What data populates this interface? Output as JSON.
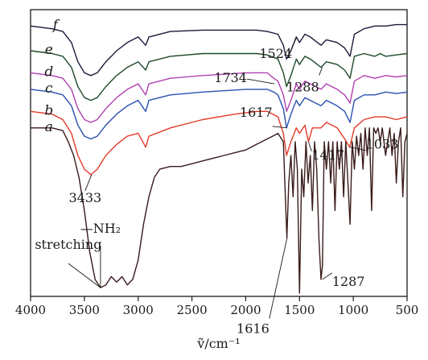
{
  "chart_data": {
    "type": "line",
    "title": "",
    "xlabel": "ṽ/cm⁻¹",
    "ylabel": "",
    "xlim": [
      4000,
      500
    ],
    "x_reversed": true,
    "x_ticks": [
      4000,
      3500,
      3000,
      2500,
      2000,
      1500,
      1000,
      500
    ],
    "x_tick_labels": [
      "4000",
      "3500",
      "3000",
      "2500",
      "2000",
      "1500",
      "1000",
      "500"
    ],
    "ylim": [
      0,
      1
    ],
    "grid": false,
    "legend": "none",
    "series": [
      {
        "name": "f",
        "color": "#1a1a3a",
        "points": [
          [
            4000,
            0.97
          ],
          [
            3800,
            0.96
          ],
          [
            3700,
            0.95
          ],
          [
            3620,
            0.91
          ],
          [
            3560,
            0.84
          ],
          [
            3500,
            0.8
          ],
          [
            3440,
            0.79
          ],
          [
            3380,
            0.8
          ],
          [
            3300,
            0.84
          ],
          [
            3200,
            0.88
          ],
          [
            3100,
            0.91
          ],
          [
            3000,
            0.93
          ],
          [
            2930,
            0.9
          ],
          [
            2900,
            0.93
          ],
          [
            2700,
            0.95
          ],
          [
            2400,
            0.955
          ],
          [
            2000,
            0.955
          ],
          [
            1900,
            0.955
          ],
          [
            1800,
            0.95
          ],
          [
            1700,
            0.94
          ],
          [
            1650,
            0.9
          ],
          [
            1620,
            0.85
          ],
          [
            1580,
            0.88
          ],
          [
            1530,
            0.93
          ],
          [
            1500,
            0.91
          ],
          [
            1450,
            0.94
          ],
          [
            1400,
            0.93
          ],
          [
            1300,
            0.9
          ],
          [
            1250,
            0.92
          ],
          [
            1150,
            0.91
          ],
          [
            1080,
            0.89
          ],
          [
            1030,
            0.86
          ],
          [
            990,
            0.94
          ],
          [
            900,
            0.96
          ],
          [
            800,
            0.97
          ],
          [
            700,
            0.97
          ],
          [
            600,
            0.975
          ],
          [
            500,
            0.975
          ]
        ]
      },
      {
        "name": "e",
        "color": "#1e4a2a",
        "points": [
          [
            4000,
            0.88
          ],
          [
            3800,
            0.87
          ],
          [
            3700,
            0.86
          ],
          [
            3620,
            0.82
          ],
          [
            3560,
            0.75
          ],
          [
            3500,
            0.71
          ],
          [
            3440,
            0.7
          ],
          [
            3380,
            0.71
          ],
          [
            3300,
            0.75
          ],
          [
            3200,
            0.79
          ],
          [
            3100,
            0.82
          ],
          [
            3000,
            0.84
          ],
          [
            2930,
            0.81
          ],
          [
            2900,
            0.84
          ],
          [
            2700,
            0.86
          ],
          [
            2400,
            0.87
          ],
          [
            2000,
            0.87
          ],
          [
            1900,
            0.87
          ],
          [
            1800,
            0.865
          ],
          [
            1700,
            0.85
          ],
          [
            1650,
            0.8
          ],
          [
            1620,
            0.75
          ],
          [
            1580,
            0.79
          ],
          [
            1530,
            0.85
          ],
          [
            1500,
            0.83
          ],
          [
            1450,
            0.86
          ],
          [
            1400,
            0.85
          ],
          [
            1300,
            0.82
          ],
          [
            1250,
            0.84
          ],
          [
            1150,
            0.83
          ],
          [
            1080,
            0.81
          ],
          [
            1030,
            0.78
          ],
          [
            990,
            0.86
          ],
          [
            900,
            0.87
          ],
          [
            800,
            0.86
          ],
          [
            750,
            0.87
          ],
          [
            700,
            0.86
          ],
          [
            600,
            0.865
          ],
          [
            500,
            0.87
          ]
        ]
      },
      {
        "name": "d",
        "color": "#b040b0",
        "points": [
          [
            4000,
            0.8
          ],
          [
            3800,
            0.79
          ],
          [
            3700,
            0.78
          ],
          [
            3620,
            0.74
          ],
          [
            3560,
            0.67
          ],
          [
            3500,
            0.63
          ],
          [
            3440,
            0.62
          ],
          [
            3380,
            0.63
          ],
          [
            3300,
            0.67
          ],
          [
            3200,
            0.71
          ],
          [
            3100,
            0.74
          ],
          [
            3000,
            0.76
          ],
          [
            2930,
            0.72
          ],
          [
            2900,
            0.76
          ],
          [
            2700,
            0.78
          ],
          [
            2400,
            0.79
          ],
          [
            2000,
            0.8
          ],
          [
            1800,
            0.8
          ],
          [
            1740,
            0.78
          ],
          [
            1700,
            0.77
          ],
          [
            1650,
            0.72
          ],
          [
            1620,
            0.66
          ],
          [
            1580,
            0.7
          ],
          [
            1530,
            0.76
          ],
          [
            1500,
            0.74
          ],
          [
            1450,
            0.77
          ],
          [
            1400,
            0.76
          ],
          [
            1300,
            0.74
          ],
          [
            1250,
            0.76
          ],
          [
            1150,
            0.74
          ],
          [
            1080,
            0.72
          ],
          [
            1030,
            0.69
          ],
          [
            990,
            0.77
          ],
          [
            900,
            0.79
          ],
          [
            800,
            0.78
          ],
          [
            700,
            0.79
          ],
          [
            600,
            0.785
          ],
          [
            500,
            0.79
          ]
        ]
      },
      {
        "name": "c",
        "color": "#2a50b0",
        "points": [
          [
            4000,
            0.74
          ],
          [
            3800,
            0.73
          ],
          [
            3700,
            0.72
          ],
          [
            3620,
            0.68
          ],
          [
            3560,
            0.61
          ],
          [
            3500,
            0.57
          ],
          [
            3440,
            0.56
          ],
          [
            3380,
            0.57
          ],
          [
            3300,
            0.61
          ],
          [
            3200,
            0.65
          ],
          [
            3100,
            0.68
          ],
          [
            3000,
            0.7
          ],
          [
            2930,
            0.66
          ],
          [
            2900,
            0.7
          ],
          [
            2700,
            0.72
          ],
          [
            2400,
            0.73
          ],
          [
            2000,
            0.74
          ],
          [
            1800,
            0.74
          ],
          [
            1740,
            0.73
          ],
          [
            1700,
            0.72
          ],
          [
            1650,
            0.67
          ],
          [
            1620,
            0.6
          ],
          [
            1580,
            0.65
          ],
          [
            1530,
            0.7
          ],
          [
            1500,
            0.68
          ],
          [
            1450,
            0.71
          ],
          [
            1400,
            0.7
          ],
          [
            1300,
            0.68
          ],
          [
            1250,
            0.7
          ],
          [
            1150,
            0.68
          ],
          [
            1080,
            0.66
          ],
          [
            1030,
            0.62
          ],
          [
            990,
            0.7
          ],
          [
            900,
            0.72
          ],
          [
            800,
            0.72
          ],
          [
            700,
            0.73
          ],
          [
            600,
            0.725
          ],
          [
            500,
            0.73
          ]
        ]
      },
      {
        "name": "b",
        "color": "#e23a2a",
        "points": [
          [
            4000,
            0.66
          ],
          [
            3800,
            0.65
          ],
          [
            3700,
            0.63
          ],
          [
            3620,
            0.58
          ],
          [
            3560,
            0.5
          ],
          [
            3500,
            0.45
          ],
          [
            3440,
            0.43
          ],
          [
            3380,
            0.45
          ],
          [
            3300,
            0.5
          ],
          [
            3200,
            0.54
          ],
          [
            3100,
            0.57
          ],
          [
            3000,
            0.58
          ],
          [
            2930,
            0.53
          ],
          [
            2900,
            0.57
          ],
          [
            2700,
            0.6
          ],
          [
            2400,
            0.63
          ],
          [
            2100,
            0.65
          ],
          [
            1900,
            0.66
          ],
          [
            1800,
            0.66
          ],
          [
            1700,
            0.64
          ],
          [
            1650,
            0.58
          ],
          [
            1620,
            0.5
          ],
          [
            1580,
            0.55
          ],
          [
            1530,
            0.6
          ],
          [
            1500,
            0.58
          ],
          [
            1450,
            0.61
          ],
          [
            1417,
            0.55
          ],
          [
            1380,
            0.6
          ],
          [
            1300,
            0.6
          ],
          [
            1250,
            0.62
          ],
          [
            1150,
            0.6
          ],
          [
            1080,
            0.56
          ],
          [
            1033,
            0.53
          ],
          [
            990,
            0.6
          ],
          [
            900,
            0.63
          ],
          [
            800,
            0.64
          ],
          [
            700,
            0.64
          ],
          [
            600,
            0.63
          ],
          [
            500,
            0.64
          ]
        ]
      },
      {
        "name": "a",
        "color": "#3a1a1a",
        "points": [
          [
            4000,
            0.6
          ],
          [
            3800,
            0.6
          ],
          [
            3700,
            0.59
          ],
          [
            3650,
            0.55
          ],
          [
            3600,
            0.5
          ],
          [
            3550,
            0.42
          ],
          [
            3500,
            0.3
          ],
          [
            3450,
            0.15
          ],
          [
            3400,
            0.05
          ],
          [
            3350,
            0.02
          ],
          [
            3300,
            0.03
          ],
          [
            3250,
            0.06
          ],
          [
            3200,
            0.04
          ],
          [
            3150,
            0.06
          ],
          [
            3100,
            0.03
          ],
          [
            3050,
            0.05
          ],
          [
            3000,
            0.12
          ],
          [
            2950,
            0.25
          ],
          [
            2900,
            0.35
          ],
          [
            2850,
            0.42
          ],
          [
            2800,
            0.45
          ],
          [
            2700,
            0.46
          ],
          [
            2600,
            0.46
          ],
          [
            2500,
            0.47
          ],
          [
            2400,
            0.48
          ],
          [
            2300,
            0.49
          ],
          [
            2200,
            0.5
          ],
          [
            2100,
            0.51
          ],
          [
            2000,
            0.52
          ],
          [
            1900,
            0.54
          ],
          [
            1800,
            0.56
          ],
          [
            1750,
            0.57
          ],
          [
            1700,
            0.58
          ],
          [
            1650,
            0.55
          ],
          [
            1617,
            0.2
          ],
          [
            1600,
            0.4
          ],
          [
            1580,
            0.5
          ],
          [
            1560,
            0.35
          ],
          [
            1540,
            0.55
          ],
          [
            1520,
            0.45
          ],
          [
            1500,
            0.0
          ],
          [
            1480,
            0.45
          ],
          [
            1460,
            0.35
          ],
          [
            1440,
            0.55
          ],
          [
            1420,
            0.4
          ],
          [
            1400,
            0.5
          ],
          [
            1380,
            0.3
          ],
          [
            1360,
            0.55
          ],
          [
            1340,
            0.45
          ],
          [
            1320,
            0.2
          ],
          [
            1300,
            0.05
          ],
          [
            1287,
            0.1
          ],
          [
            1270,
            0.55
          ],
          [
            1250,
            0.45
          ],
          [
            1230,
            0.55
          ],
          [
            1210,
            0.4
          ],
          [
            1190,
            0.55
          ],
          [
            1170,
            0.3
          ],
          [
            1150,
            0.55
          ],
          [
            1130,
            0.45
          ],
          [
            1110,
            0.55
          ],
          [
            1090,
            0.35
          ],
          [
            1070,
            0.55
          ],
          [
            1050,
            0.4
          ],
          [
            1030,
            0.25
          ],
          [
            1010,
            0.55
          ],
          [
            990,
            0.45
          ],
          [
            970,
            0.57
          ],
          [
            950,
            0.5
          ],
          [
            930,
            0.58
          ],
          [
            910,
            0.45
          ],
          [
            890,
            0.6
          ],
          [
            870,
            0.5
          ],
          [
            850,
            0.6
          ],
          [
            830,
            0.3
          ],
          [
            810,
            0.6
          ],
          [
            790,
            0.58
          ],
          [
            770,
            0.6
          ],
          [
            750,
            0.55
          ],
          [
            730,
            0.6
          ],
          [
            700,
            0.5
          ],
          [
            680,
            0.55
          ],
          [
            660,
            0.6
          ],
          [
            640,
            0.5
          ],
          [
            620,
            0.58
          ],
          [
            600,
            0.4
          ],
          [
            580,
            0.55
          ],
          [
            560,
            0.6
          ],
          [
            540,
            0.35
          ],
          [
            520,
            0.55
          ],
          [
            500,
            0.58
          ]
        ]
      }
    ],
    "curve_labels": [
      {
        "text": "f",
        "x": 3560,
        "y": 0.97
      },
      {
        "text": "e",
        "x": 3620,
        "y": 0.88
      },
      {
        "text": "d",
        "x": 3620,
        "y": 0.8
      },
      {
        "text": "c",
        "x": 3620,
        "y": 0.74
      },
      {
        "text": "b",
        "x": 3620,
        "y": 0.66
      },
      {
        "text": "a",
        "x": 3620,
        "y": 0.6
      }
    ],
    "annotations": [
      {
        "text": "1524",
        "x": 1524,
        "y": 0.93
      },
      {
        "text": "1288",
        "x": 1288,
        "y": 0.82
      },
      {
        "text": "1734",
        "x": 1734,
        "y": 0.76
      },
      {
        "text": "1617",
        "x": 1617,
        "y": 0.6
      },
      {
        "text": "1417",
        "x": 1417,
        "y": 0.55
      },
      {
        "text": "1033",
        "x": 1033,
        "y": 0.53
      },
      {
        "text": "3433",
        "x": 3433,
        "y": 0.43
      },
      {
        "text": "1616",
        "x": 1616,
        "y": 0.2
      },
      {
        "text": "1287",
        "x": 1287,
        "y": 0.05
      },
      {
        "text": "—NH₂",
        "x": 3350,
        "y": 0.02
      },
      {
        "text": "stretching",
        "x": 3350,
        "y": 0.02
      }
    ]
  }
}
